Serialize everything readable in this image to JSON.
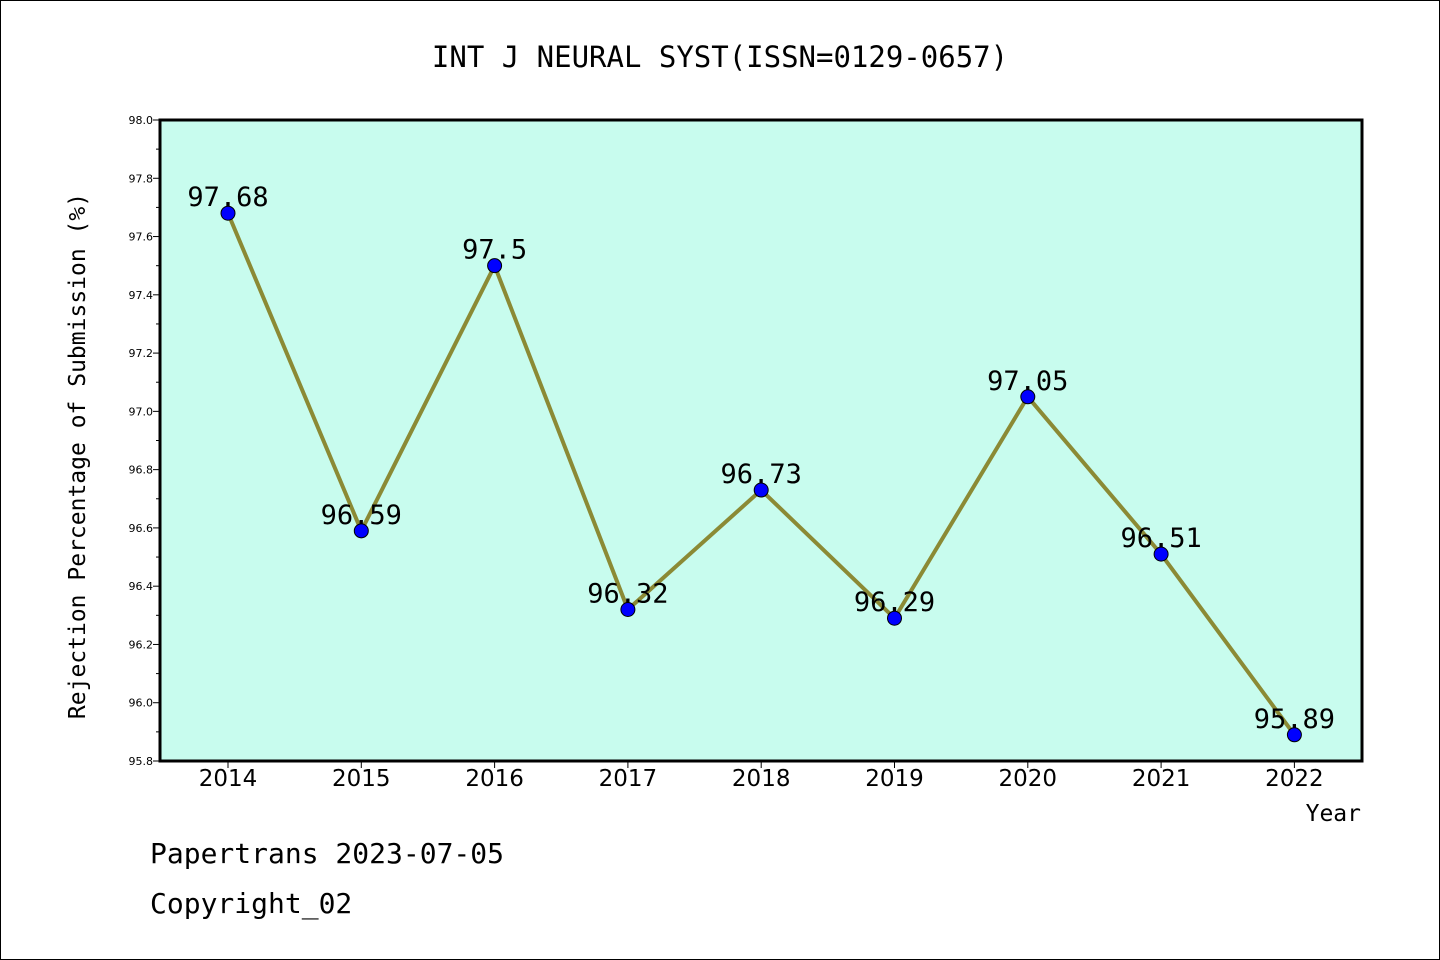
{
  "chart_data": {
    "type": "line",
    "title": "INT J NEURAL SYST(ISSN=0129-0657)",
    "xlabel": "Year",
    "ylabel": "Rejection Percentage of Submission (%)",
    "categories": [
      "2014",
      "2015",
      "2016",
      "2017",
      "2018",
      "2019",
      "2020",
      "2021",
      "2022"
    ],
    "series": [
      {
        "values": [
          97.68,
          96.59,
          97.5,
          96.32,
          96.73,
          96.29,
          97.05,
          96.51,
          95.89
        ],
        "labels": [
          "97.68",
          "96.59",
          "97.5",
          "96.32",
          "96.73",
          "96.29",
          "97.05",
          "96.51",
          "95.89"
        ]
      }
    ],
    "ylim": [
      95.8,
      98.0
    ],
    "yticks": [
      "95.8",
      "96.0",
      "96.2",
      "96.4",
      "96.6",
      "96.8",
      "97.0",
      "97.2",
      "97.4",
      "97.6",
      "97.8",
      "98.0"
    ],
    "grid": false,
    "colors": {
      "plot_background": "#c8fcee",
      "line": "#8b8a35",
      "marker": "#0000ff"
    }
  },
  "footer": {
    "source": "Papertrans 2023-07-05",
    "copyright": "Copyright_02"
  }
}
